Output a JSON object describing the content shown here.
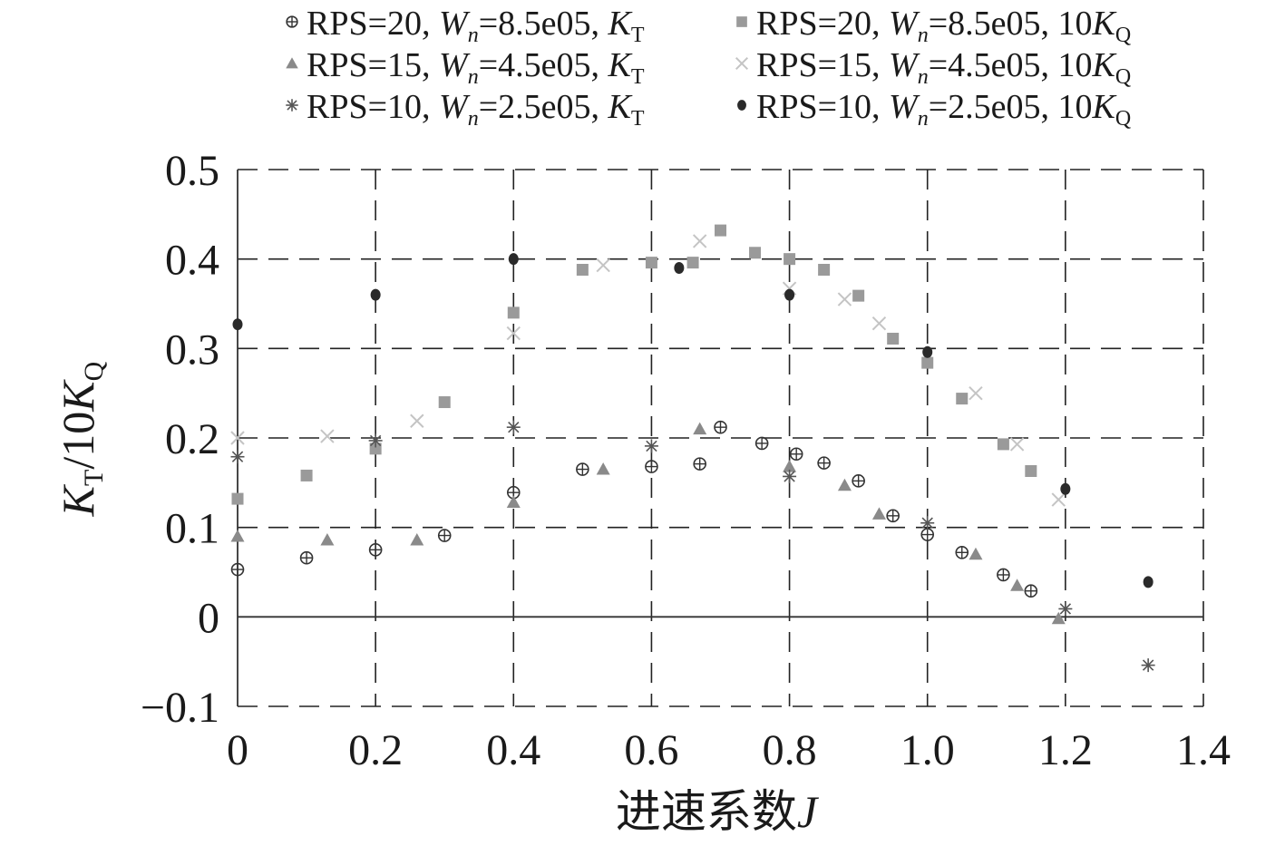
{
  "chart_data": {
    "type": "scatter",
    "xlabel_prefix": "进速系数",
    "xlabel_var": "J",
    "ylabel": {
      "K1": "K",
      "T": "T",
      "sep": "/10",
      "K2": "K",
      "Q": "Q"
    },
    "xlim": [
      0,
      1.4
    ],
    "ylim": [
      -0.1,
      0.5
    ],
    "x_ticks": [
      "0",
      "0.2",
      "0.4",
      "0.6",
      "0.8",
      "1.0",
      "1.2",
      "1.4"
    ],
    "y_ticks": [
      "0.5",
      "0.4",
      "0.3",
      "0.2",
      "0.1",
      "0",
      "−0.1"
    ],
    "grid": true,
    "legend_position": "top",
    "series": [
      {
        "legend": {
          "pre": "RPS=20, ",
          "w": "W",
          "n": "n",
          "val": "=8.5e05, ",
          "coef": "",
          "k": "K",
          "sub": "T"
        },
        "marker": "circle-plus",
        "color": "#333333",
        "points": [
          [
            0,
            0.053
          ],
          [
            0.1,
            0.066
          ],
          [
            0.2,
            0.075
          ],
          [
            0.3,
            0.091
          ],
          [
            0.4,
            0.139
          ],
          [
            0.5,
            0.165
          ],
          [
            0.6,
            0.168
          ],
          [
            0.67,
            0.171
          ],
          [
            0.7,
            0.212
          ],
          [
            0.76,
            0.194
          ],
          [
            0.81,
            0.182
          ],
          [
            0.85,
            0.172
          ],
          [
            0.9,
            0.152
          ],
          [
            0.95,
            0.113
          ],
          [
            1.0,
            0.092
          ],
          [
            1.05,
            0.072
          ],
          [
            1.11,
            0.047
          ],
          [
            1.15,
            0.029
          ]
        ]
      },
      {
        "legend": {
          "pre": "RPS=20, ",
          "w": "W",
          "n": "n",
          "val": "=8.5e05, ",
          "coef": "10",
          "k": "K",
          "sub": "Q"
        },
        "marker": "square",
        "color": "#9a9a9a",
        "points": [
          [
            0,
            0.132
          ],
          [
            0.1,
            0.158
          ],
          [
            0.2,
            0.188
          ],
          [
            0.3,
            0.24
          ],
          [
            0.4,
            0.34
          ],
          [
            0.5,
            0.388
          ],
          [
            0.6,
            0.396
          ],
          [
            0.66,
            0.396
          ],
          [
            0.7,
            0.432
          ],
          [
            0.75,
            0.407
          ],
          [
            0.8,
            0.4
          ],
          [
            0.85,
            0.388
          ],
          [
            0.9,
            0.359
          ],
          [
            0.95,
            0.311
          ],
          [
            1.0,
            0.284
          ],
          [
            1.05,
            0.244
          ],
          [
            1.11,
            0.193
          ],
          [
            1.15,
            0.163
          ]
        ]
      },
      {
        "legend": {
          "pre": "RPS=15, ",
          "w": "W",
          "n": "n",
          "val": "=4.5e05, ",
          "coef": "",
          "k": "K",
          "sub": "T"
        },
        "marker": "triangle",
        "color": "#8a8a8a",
        "points": [
          [
            0,
            0.09
          ],
          [
            0.13,
            0.086
          ],
          [
            0.26,
            0.086
          ],
          [
            0.4,
            0.128
          ],
          [
            0.53,
            0.165
          ],
          [
            0.67,
            0.21
          ],
          [
            0.8,
            0.168
          ],
          [
            0.88,
            0.147
          ],
          [
            0.93,
            0.115
          ],
          [
            1.07,
            0.07
          ],
          [
            1.13,
            0.035
          ],
          [
            1.19,
            -0.002
          ]
        ]
      },
      {
        "legend": {
          "pre": "RPS=15, ",
          "w": "W",
          "n": "n",
          "val": "=4.5e05, ",
          "coef": "10",
          "k": "K",
          "sub": "Q"
        },
        "marker": "cross",
        "color": "#c4c4c4",
        "points": [
          [
            0,
            0.2
          ],
          [
            0.13,
            0.202
          ],
          [
            0.26,
            0.219
          ],
          [
            0.4,
            0.317
          ],
          [
            0.53,
            0.393
          ],
          [
            0.67,
            0.42
          ],
          [
            0.8,
            0.367
          ],
          [
            0.88,
            0.355
          ],
          [
            0.93,
            0.328
          ],
          [
            1.07,
            0.25
          ],
          [
            1.13,
            0.193
          ],
          [
            1.19,
            0.131
          ]
        ]
      },
      {
        "legend": {
          "pre": "RPS=10, ",
          "w": "W",
          "n": "n",
          "val": "=2.5e05, ",
          "coef": "",
          "k": "K",
          "sub": "T"
        },
        "marker": "asterisk",
        "color": "#555555",
        "points": [
          [
            0,
            0.179
          ],
          [
            0.2,
            0.197
          ],
          [
            0.4,
            0.212
          ],
          [
            0.6,
            0.191
          ],
          [
            0.8,
            0.157
          ],
          [
            1.0,
            0.105
          ],
          [
            1.2,
            0.009
          ],
          [
            1.32,
            -0.054
          ]
        ]
      },
      {
        "legend": {
          "pre": "RPS=10, ",
          "w": "W",
          "n": "n",
          "val": "=2.5e05, ",
          "coef": "10",
          "k": "K",
          "sub": "Q"
        },
        "marker": "dot",
        "color": "#2a2a2a",
        "points": [
          [
            0,
            0.327
          ],
          [
            0.2,
            0.36
          ],
          [
            0.4,
            0.4
          ],
          [
            0.64,
            0.39
          ],
          [
            0.8,
            0.36
          ],
          [
            1.0,
            0.296
          ],
          [
            1.2,
            0.143
          ],
          [
            1.32,
            0.039
          ]
        ]
      }
    ]
  }
}
